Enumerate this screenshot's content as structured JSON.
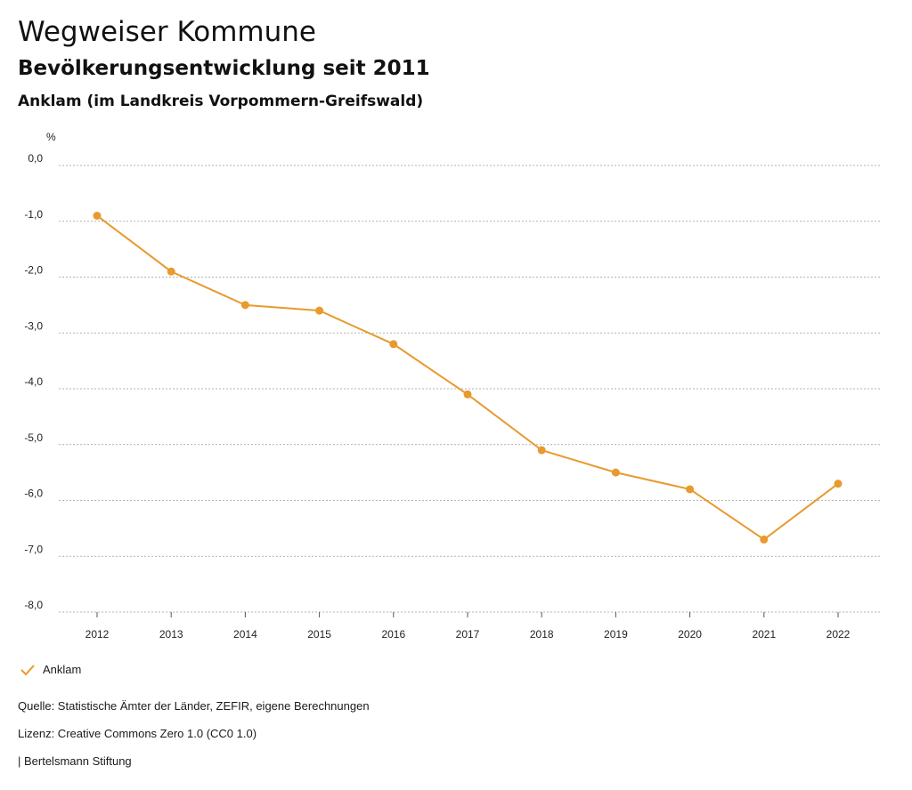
{
  "header": {
    "title": "Wegweiser Kommune",
    "subtitle": "Bevölkerungsentwicklung seit 2011",
    "place": "Anklam (im Landkreis Vorpommern-Greifswald)"
  },
  "chart_data": {
    "type": "line",
    "ylabel": "%",
    "x": [
      "2012",
      "2013",
      "2014",
      "2015",
      "2016",
      "2017",
      "2018",
      "2019",
      "2020",
      "2021",
      "2022"
    ],
    "series": [
      {
        "name": "Anklam",
        "color": "#e89a2c",
        "values": [
          -0.9,
          -1.9,
          -2.5,
          -2.6,
          -3.2,
          -4.1,
          -5.1,
          -5.5,
          -5.8,
          -6.7,
          -5.7
        ]
      }
    ],
    "yticks": [
      "0,0",
      "-1,0",
      "-2,0",
      "-3,0",
      "-4,0",
      "-5,0",
      "-6,0",
      "-7,0",
      "-8,0"
    ],
    "ylim": [
      -8,
      0
    ],
    "grid": true,
    "legend_position": "bottom-left"
  },
  "legend": {
    "label": "Anklam"
  },
  "footer": {
    "source": "Quelle: Statistische Ämter der Länder, ZEFIR, eigene Berechnungen",
    "license": "Lizenz: Creative Commons Zero 1.0 (CC0 1.0)",
    "publisher": "| Bertelsmann Stiftung"
  }
}
